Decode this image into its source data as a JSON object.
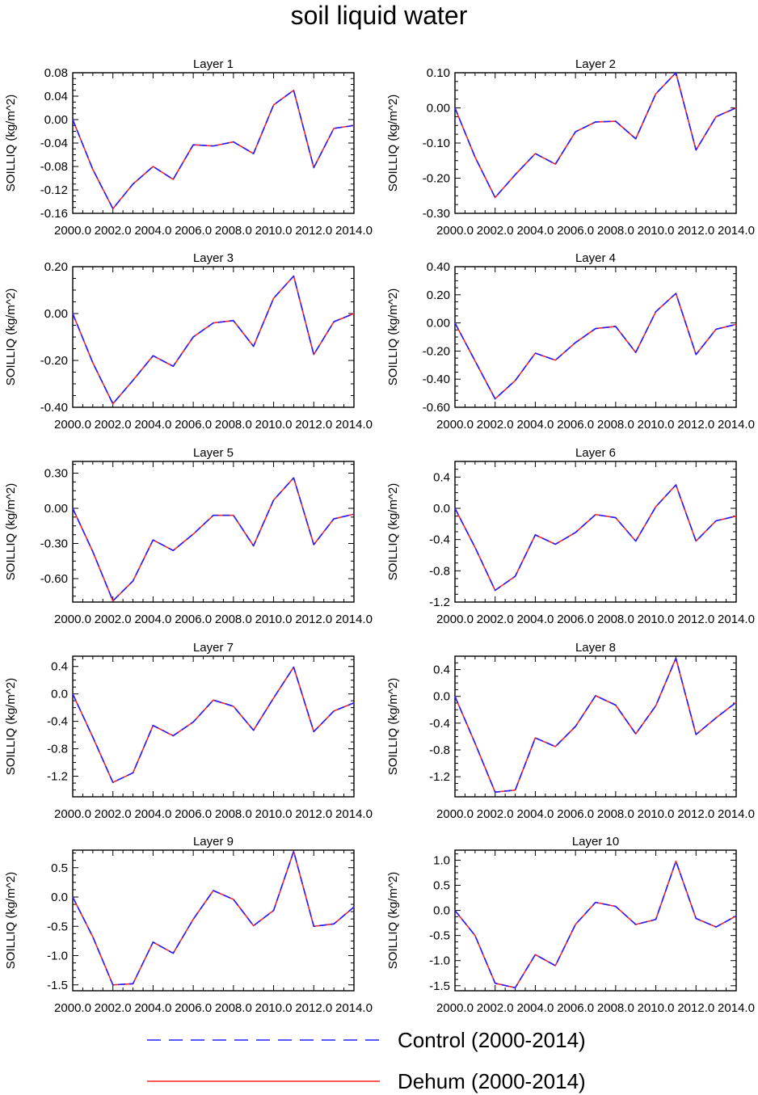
{
  "page_title": "soil liquid water",
  "legend": {
    "items": [
      {
        "label": "Control (2000-2014)",
        "color": "#2020ff",
        "dash": "dashed"
      },
      {
        "label": "Dehum (2000-2014)",
        "color": "#ff2020",
        "dash": "solid"
      }
    ]
  },
  "chart_data": [
    {
      "type": "line",
      "title": "Layer 1",
      "ylabel": "SOILLIQ  (kg/m^2)",
      "x": [
        2000,
        2001,
        2002,
        2003,
        2004,
        2005,
        2006,
        2007,
        2008,
        2009,
        2010,
        2011,
        2012,
        2013,
        2014
      ],
      "xlim": [
        2000,
        2014
      ],
      "xticks": [
        "2000.0",
        "2002.0",
        "2004.0",
        "2006.0",
        "2008.0",
        "2010.0",
        "2012.0",
        "2014.0"
      ],
      "ylim": [
        -0.16,
        0.08
      ],
      "yticks": [
        "0.08",
        "0.04",
        "0.00",
        "-0.04",
        "-0.08",
        "-0.12",
        "-0.16"
      ],
      "series": [
        {
          "values": [
            0.0,
            -0.085,
            -0.152,
            -0.11,
            -0.08,
            -0.102,
            -0.043,
            -0.045,
            -0.038,
            -0.058,
            0.025,
            0.05,
            -0.082,
            -0.015,
            -0.01
          ]
        },
        {
          "values": [
            0.0,
            -0.085,
            -0.152,
            -0.11,
            -0.08,
            -0.102,
            -0.043,
            -0.045,
            -0.038,
            -0.058,
            0.025,
            0.05,
            -0.082,
            -0.015,
            -0.01
          ]
        }
      ]
    },
    {
      "type": "line",
      "title": "Layer 2",
      "ylabel": "SOILLIQ  (kg/m^2)",
      "x": [
        2000,
        2001,
        2002,
        2003,
        2004,
        2005,
        2006,
        2007,
        2008,
        2009,
        2010,
        2011,
        2012,
        2013,
        2014
      ],
      "xlim": [
        2000,
        2014
      ],
      "xticks": [
        "2000.0",
        "2002.0",
        "2004.0",
        "2006.0",
        "2008.0",
        "2010.0",
        "2012.0",
        "2014.0"
      ],
      "ylim": [
        -0.3,
        0.1
      ],
      "yticks": [
        "0.10",
        "0.00",
        "-0.10",
        "-0.20",
        "-0.30"
      ],
      "series": [
        {
          "values": [
            0.0,
            -0.14,
            -0.255,
            -0.19,
            -0.13,
            -0.16,
            -0.068,
            -0.04,
            -0.038,
            -0.088,
            0.04,
            0.1,
            -0.12,
            -0.025,
            0.0
          ]
        },
        {
          "values": [
            0.0,
            -0.14,
            -0.255,
            -0.19,
            -0.13,
            -0.16,
            -0.068,
            -0.04,
            -0.038,
            -0.088,
            0.04,
            0.1,
            -0.12,
            -0.025,
            0.0
          ]
        }
      ]
    },
    {
      "type": "line",
      "title": "Layer 3",
      "ylabel": "SOILLIQ  (kg/m^2)",
      "x": [
        2000,
        2001,
        2002,
        2003,
        2004,
        2005,
        2006,
        2007,
        2008,
        2009,
        2010,
        2011,
        2012,
        2013,
        2014
      ],
      "xlim": [
        2000,
        2014
      ],
      "xticks": [
        "2000.0",
        "2002.0",
        "2004.0",
        "2006.0",
        "2008.0",
        "2010.0",
        "2012.0",
        "2014.0"
      ],
      "ylim": [
        -0.4,
        0.2
      ],
      "yticks": [
        "0.20",
        "0.00",
        "-0.20",
        "-0.40"
      ],
      "series": [
        {
          "values": [
            0.0,
            -0.21,
            -0.385,
            -0.285,
            -0.18,
            -0.225,
            -0.1,
            -0.04,
            -0.03,
            -0.14,
            0.065,
            0.16,
            -0.175,
            -0.035,
            0.0
          ]
        },
        {
          "values": [
            0.0,
            -0.21,
            -0.385,
            -0.285,
            -0.18,
            -0.225,
            -0.1,
            -0.04,
            -0.03,
            -0.14,
            0.065,
            0.16,
            -0.175,
            -0.035,
            0.0
          ]
        }
      ]
    },
    {
      "type": "line",
      "title": "Layer 4",
      "ylabel": "SOILLIQ  (kg/m^2)",
      "x": [
        2000,
        2001,
        2002,
        2003,
        2004,
        2005,
        2006,
        2007,
        2008,
        2009,
        2010,
        2011,
        2012,
        2013,
        2014
      ],
      "xlim": [
        2000,
        2014
      ],
      "xticks": [
        "2000.0",
        "2002.0",
        "2004.0",
        "2006.0",
        "2008.0",
        "2010.0",
        "2012.0",
        "2014.0"
      ],
      "ylim": [
        -0.6,
        0.4
      ],
      "yticks": [
        "0.40",
        "0.20",
        "0.00",
        "-0.20",
        "-0.40",
        "-0.60"
      ],
      "series": [
        {
          "values": [
            0.0,
            -0.27,
            -0.54,
            -0.41,
            -0.215,
            -0.265,
            -0.14,
            -0.04,
            -0.025,
            -0.21,
            0.08,
            0.21,
            -0.225,
            -0.045,
            -0.01
          ]
        },
        {
          "values": [
            0.0,
            -0.27,
            -0.54,
            -0.41,
            -0.215,
            -0.265,
            -0.14,
            -0.04,
            -0.025,
            -0.21,
            0.08,
            0.21,
            -0.225,
            -0.045,
            -0.01
          ]
        }
      ]
    },
    {
      "type": "line",
      "title": "Layer 5",
      "ylabel": "SOILLIQ  (kg/m^2)",
      "x": [
        2000,
        2001,
        2002,
        2003,
        2004,
        2005,
        2006,
        2007,
        2008,
        2009,
        2010,
        2011,
        2012,
        2013,
        2014
      ],
      "xlim": [
        2000,
        2014
      ],
      "xticks": [
        "2000.0",
        "2002.0",
        "2004.0",
        "2006.0",
        "2008.0",
        "2010.0",
        "2012.0",
        "2014.0"
      ],
      "ylim": [
        -0.8,
        0.4
      ],
      "yticks": [
        "0.30",
        "0.00",
        "-0.30",
        "-0.60"
      ],
      "series": [
        {
          "values": [
            0.0,
            -0.37,
            -0.79,
            -0.62,
            -0.27,
            -0.36,
            -0.22,
            -0.06,
            -0.06,
            -0.32,
            0.07,
            0.26,
            -0.31,
            -0.09,
            -0.05
          ]
        },
        {
          "values": [
            0.0,
            -0.37,
            -0.79,
            -0.62,
            -0.27,
            -0.36,
            -0.22,
            -0.06,
            -0.06,
            -0.32,
            0.07,
            0.26,
            -0.31,
            -0.09,
            -0.05
          ]
        }
      ]
    },
    {
      "type": "line",
      "title": "Layer 6",
      "ylabel": "SOILLIQ  (kg/m^2)",
      "x": [
        2000,
        2001,
        2002,
        2003,
        2004,
        2005,
        2006,
        2007,
        2008,
        2009,
        2010,
        2011,
        2012,
        2013,
        2014
      ],
      "xlim": [
        2000,
        2014
      ],
      "xticks": [
        "2000.0",
        "2002.0",
        "2004.0",
        "2006.0",
        "2008.0",
        "2010.0",
        "2012.0",
        "2014.0"
      ],
      "ylim": [
        -1.2,
        0.6
      ],
      "yticks": [
        "0.4",
        "0.0",
        "-0.4",
        "-0.8",
        "-1.2"
      ],
      "series": [
        {
          "values": [
            0.0,
            -0.5,
            -1.05,
            -0.87,
            -0.34,
            -0.46,
            -0.31,
            -0.08,
            -0.12,
            -0.42,
            0.02,
            0.3,
            -0.42,
            -0.16,
            -0.1
          ]
        },
        {
          "values": [
            0.0,
            -0.5,
            -1.05,
            -0.87,
            -0.34,
            -0.46,
            -0.31,
            -0.08,
            -0.12,
            -0.42,
            0.02,
            0.3,
            -0.42,
            -0.16,
            -0.1
          ]
        }
      ]
    },
    {
      "type": "line",
      "title": "Layer 7",
      "ylabel": "SOILLIQ  (kg/m^2)",
      "x": [
        2000,
        2001,
        2002,
        2003,
        2004,
        2005,
        2006,
        2007,
        2008,
        2009,
        2010,
        2011,
        2012,
        2013,
        2014
      ],
      "xlim": [
        2000,
        2014
      ],
      "xticks": [
        "2000.0",
        "2002.0",
        "2004.0",
        "2006.0",
        "2008.0",
        "2010.0",
        "2012.0",
        "2014.0"
      ],
      "ylim": [
        -1.5,
        0.55
      ],
      "yticks": [
        "0.4",
        "0.0",
        "-0.4",
        "-0.8",
        "-1.2"
      ],
      "series": [
        {
          "values": [
            0.0,
            -0.63,
            -1.29,
            -1.15,
            -0.46,
            -0.61,
            -0.41,
            -0.09,
            -0.18,
            -0.53,
            -0.06,
            0.39,
            -0.55,
            -0.25,
            -0.13
          ]
        },
        {
          "values": [
            0.0,
            -0.63,
            -1.29,
            -1.15,
            -0.46,
            -0.61,
            -0.41,
            -0.09,
            -0.18,
            -0.53,
            -0.06,
            0.39,
            -0.55,
            -0.25,
            -0.13
          ]
        }
      ]
    },
    {
      "type": "line",
      "title": "Layer 8",
      "ylabel": "SOILLIQ  (kg/m^2)",
      "x": [
        2000,
        2001,
        2002,
        2003,
        2004,
        2005,
        2006,
        2007,
        2008,
        2009,
        2010,
        2011,
        2012,
        2013,
        2014
      ],
      "xlim": [
        2000,
        2014
      ],
      "xticks": [
        "2000.0",
        "2002.0",
        "2004.0",
        "2006.0",
        "2008.0",
        "2010.0",
        "2012.0",
        "2014.0"
      ],
      "ylim": [
        -1.5,
        0.6
      ],
      "yticks": [
        "0.4",
        "0.0",
        "-0.4",
        "-0.8",
        "-1.2"
      ],
      "series": [
        {
          "values": [
            0.0,
            -0.7,
            -1.43,
            -1.4,
            -0.62,
            -0.75,
            -0.45,
            0.01,
            -0.13,
            -0.56,
            -0.14,
            0.57,
            -0.57,
            -0.32,
            -0.09
          ]
        },
        {
          "values": [
            0.0,
            -0.7,
            -1.43,
            -1.4,
            -0.62,
            -0.75,
            -0.45,
            0.01,
            -0.13,
            -0.56,
            -0.14,
            0.57,
            -0.57,
            -0.32,
            -0.09
          ]
        }
      ]
    },
    {
      "type": "line",
      "title": "Layer 9",
      "ylabel": "SOILLIQ  (kg/m^2)",
      "x": [
        2000,
        2001,
        2002,
        2003,
        2004,
        2005,
        2006,
        2007,
        2008,
        2009,
        2010,
        2011,
        2012,
        2013,
        2014
      ],
      "xlim": [
        2000,
        2014
      ],
      "xticks": [
        "2000.0",
        "2002.0",
        "2004.0",
        "2006.0",
        "2008.0",
        "2010.0",
        "2012.0",
        "2014.0"
      ],
      "ylim": [
        -1.6,
        0.8
      ],
      "yticks": [
        "0.5",
        "0.0",
        "-0.5",
        "-1.0",
        "-1.5"
      ],
      "series": [
        {
          "values": [
            0.0,
            -0.68,
            -1.5,
            -1.48,
            -0.77,
            -0.96,
            -0.38,
            0.11,
            -0.04,
            -0.49,
            -0.23,
            0.78,
            -0.5,
            -0.46,
            -0.17
          ]
        },
        {
          "values": [
            0.0,
            -0.68,
            -1.5,
            -1.48,
            -0.77,
            -0.96,
            -0.38,
            0.11,
            -0.04,
            -0.49,
            -0.23,
            0.78,
            -0.5,
            -0.46,
            -0.17
          ]
        }
      ]
    },
    {
      "type": "line",
      "title": "Layer 10",
      "ylabel": "SOILLIQ  (kg/m^2)",
      "x": [
        2000,
        2001,
        2002,
        2003,
        2004,
        2005,
        2006,
        2007,
        2008,
        2009,
        2010,
        2011,
        2012,
        2013,
        2014
      ],
      "xlim": [
        2000,
        2014
      ],
      "xticks": [
        "2000.0",
        "2002.0",
        "2004.0",
        "2006.0",
        "2008.0",
        "2010.0",
        "2012.0",
        "2014.0"
      ],
      "ylim": [
        -1.6,
        1.2
      ],
      "yticks": [
        "1.0",
        "0.5",
        "0.0",
        "-0.5",
        "-1.0",
        "-1.5"
      ],
      "series": [
        {
          "values": [
            0.0,
            -0.5,
            -1.45,
            -1.54,
            -0.88,
            -1.1,
            -0.28,
            0.16,
            0.08,
            -0.28,
            -0.18,
            0.98,
            -0.16,
            -0.33,
            -0.11
          ]
        },
        {
          "values": [
            0.0,
            -0.5,
            -1.45,
            -1.54,
            -0.88,
            -1.1,
            -0.28,
            0.16,
            0.08,
            -0.28,
            -0.18,
            0.98,
            -0.16,
            -0.33,
            -0.11
          ]
        }
      ]
    }
  ]
}
